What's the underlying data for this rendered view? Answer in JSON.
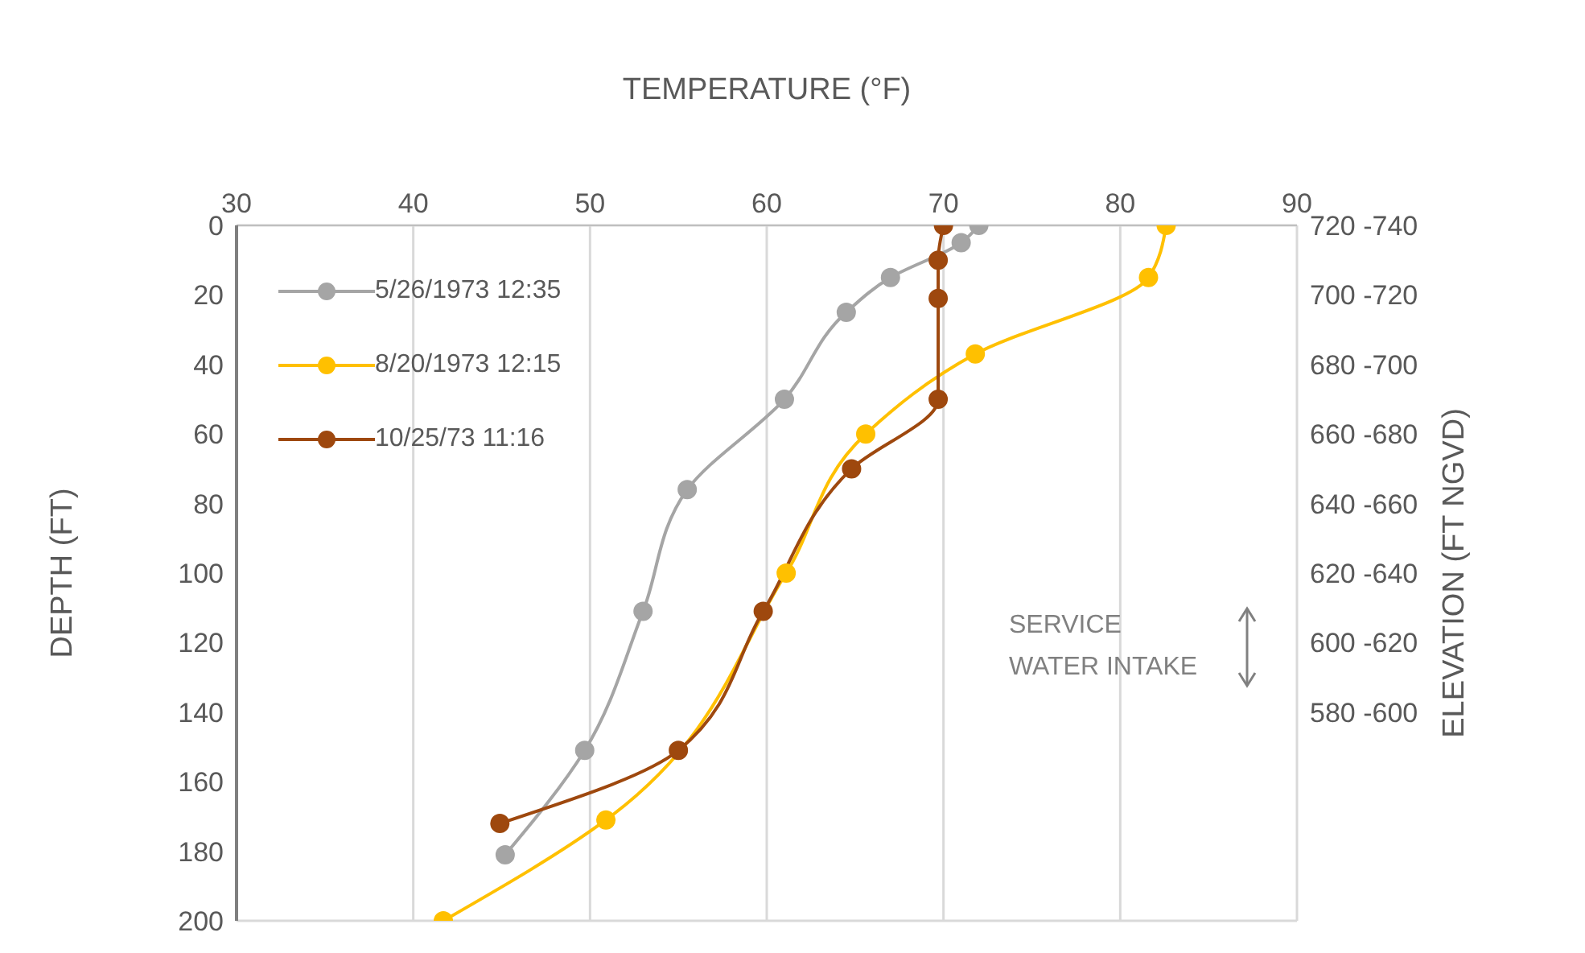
{
  "chart_data": {
    "type": "line",
    "xlabel": "TEMPERATURE (°F)",
    "ylabel": "DEPTH (FT)",
    "y2label": "ELEVATION (FT NGVD)",
    "xlim": [
      30,
      90
    ],
    "xticks": [
      30,
      40,
      50,
      60,
      70,
      80,
      90
    ],
    "ylim": [
      200,
      0
    ],
    "yticks": [
      0,
      20,
      40,
      60,
      80,
      100,
      120,
      140,
      160,
      180,
      200
    ],
    "y2_categories": [
      "720 -740",
      "700 -720",
      "680 -700",
      "660 -680",
      "640 -660",
      "620 -640",
      "600 -620",
      "580 -600",
      null,
      null,
      null
    ],
    "grid": true,
    "legend": "top left",
    "marker": "circle",
    "line_style": "solid",
    "annotations": [
      "SERVICE WATER INTAKE"
    ],
    "series": [
      {
        "name": "5/26/1973 12:35",
        "color": "#a5a5a5",
        "x": [
          72,
          71,
          67,
          64.5,
          61,
          55.5,
          53,
          49.7,
          45.2
        ],
        "values": [
          0,
          5,
          15,
          25,
          50,
          76,
          111,
          151,
          181
        ]
      },
      {
        "name": "8/20/1973 12:15",
        "color": "#ffc000",
        "x": [
          82.6,
          81.6,
          71.8,
          65.6,
          61.1,
          50.9,
          41.7
        ],
        "values": [
          0,
          15,
          37,
          60,
          100,
          171,
          200
        ]
      },
      {
        "name": "10/25/73 11:16",
        "color": "#9e480e",
        "x": [
          70,
          69.7,
          69.7,
          69.7,
          64.8,
          59.8,
          55,
          44.9
        ],
        "values": [
          0,
          10,
          21,
          50,
          70,
          111,
          151,
          172
        ]
      }
    ]
  }
}
